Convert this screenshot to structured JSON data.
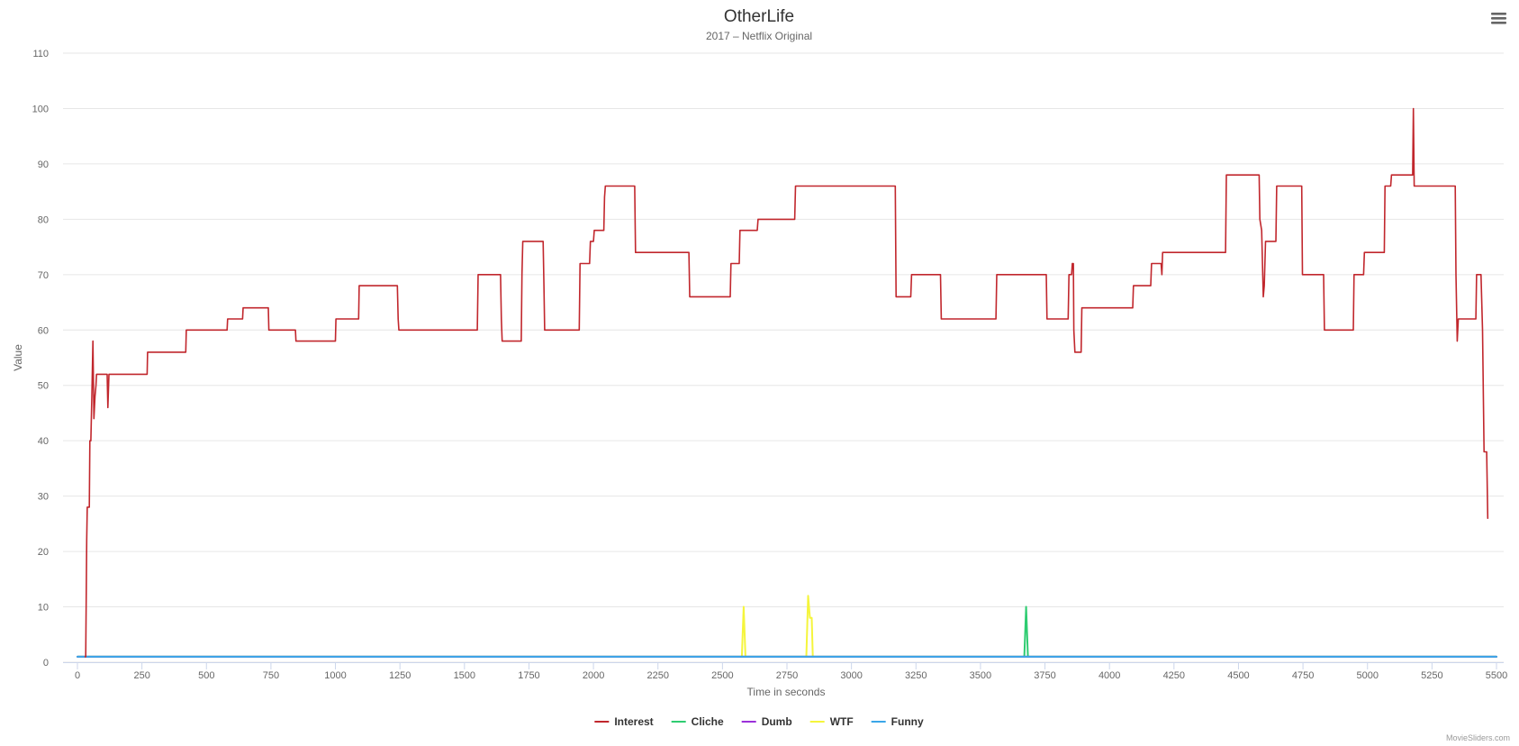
{
  "menu_icon": "hamburger-menu-icon",
  "credits": "MovieSliders.com",
  "chart_data": {
    "type": "line",
    "title": "OtherLife",
    "subtitle": "2017 – Netflix Original",
    "xlabel": "Time in seconds",
    "ylabel": "Value",
    "xlim": [
      0,
      5500
    ],
    "ylim": [
      0,
      110
    ],
    "x_ticks": [
      0,
      250,
      500,
      750,
      1000,
      1250,
      1500,
      1750,
      2000,
      2250,
      2500,
      2750,
      3000,
      3250,
      3500,
      3750,
      4000,
      4250,
      4500,
      4750,
      5000,
      5250,
      5500
    ],
    "y_ticks": [
      0,
      10,
      20,
      30,
      40,
      50,
      60,
      70,
      80,
      90,
      100,
      110
    ],
    "grid": "horizontal",
    "legend_position": "bottom-center",
    "series": [
      {
        "name": "Interest",
        "color": "#c1272d",
        "points": [
          [
            30,
            1
          ],
          [
            32,
            1
          ],
          [
            36,
            22
          ],
          [
            38,
            28
          ],
          [
            46,
            28
          ],
          [
            48,
            40
          ],
          [
            52,
            40
          ],
          [
            56,
            48
          ],
          [
            60,
            58
          ],
          [
            64,
            44
          ],
          [
            68,
            48
          ],
          [
            72,
            50
          ],
          [
            74,
            52
          ],
          [
            115,
            52
          ],
          [
            118,
            46
          ],
          [
            122,
            52
          ],
          [
            270,
            52
          ],
          [
            272,
            56
          ],
          [
            420,
            56
          ],
          [
            422,
            60
          ],
          [
            580,
            60
          ],
          [
            582,
            62
          ],
          [
            640,
            62
          ],
          [
            642,
            64
          ],
          [
            740,
            64
          ],
          [
            742,
            60
          ],
          [
            845,
            60
          ],
          [
            847,
            58
          ],
          [
            1000,
            58
          ],
          [
            1002,
            62
          ],
          [
            1090,
            62
          ],
          [
            1092,
            68
          ],
          [
            1240,
            68
          ],
          [
            1243,
            62
          ],
          [
            1246,
            60
          ],
          [
            1550,
            60
          ],
          [
            1553,
            70
          ],
          [
            1640,
            70
          ],
          [
            1643,
            62
          ],
          [
            1646,
            58
          ],
          [
            1720,
            58
          ],
          [
            1723,
            70
          ],
          [
            1726,
            76
          ],
          [
            1805,
            76
          ],
          [
            1808,
            68
          ],
          [
            1811,
            60
          ],
          [
            1945,
            60
          ],
          [
            1948,
            72
          ],
          [
            1985,
            72
          ],
          [
            1988,
            76
          ],
          [
            2000,
            76
          ],
          [
            2003,
            78
          ],
          [
            2040,
            78
          ],
          [
            2043,
            84
          ],
          [
            2046,
            86
          ],
          [
            2160,
            86
          ],
          [
            2163,
            74
          ],
          [
            2370,
            74
          ],
          [
            2373,
            66
          ],
          [
            2530,
            66
          ],
          [
            2533,
            72
          ],
          [
            2565,
            72
          ],
          [
            2568,
            78
          ],
          [
            2635,
            78
          ],
          [
            2638,
            80
          ],
          [
            2780,
            80
          ],
          [
            2783,
            86
          ],
          [
            3170,
            86
          ],
          [
            3173,
            66
          ],
          [
            3230,
            66
          ],
          [
            3233,
            70
          ],
          [
            3345,
            70
          ],
          [
            3348,
            62
          ],
          [
            3560,
            62
          ],
          [
            3563,
            70
          ],
          [
            3755,
            70
          ],
          [
            3758,
            62
          ],
          [
            3840,
            62
          ],
          [
            3843,
            70
          ],
          [
            3853,
            70
          ],
          [
            3856,
            72
          ],
          [
            3860,
            72
          ],
          [
            3862,
            60
          ],
          [
            3866,
            56
          ],
          [
            3890,
            56
          ],
          [
            3893,
            64
          ],
          [
            4090,
            64
          ],
          [
            4093,
            68
          ],
          [
            4160,
            68
          ],
          [
            4163,
            72
          ],
          [
            4200,
            72
          ],
          [
            4203,
            70
          ],
          [
            4206,
            74
          ],
          [
            4450,
            74
          ],
          [
            4453,
            88
          ],
          [
            4580,
            88
          ],
          [
            4583,
            80
          ],
          [
            4590,
            78
          ],
          [
            4596,
            66
          ],
          [
            4600,
            68
          ],
          [
            4605,
            76
          ],
          [
            4645,
            76
          ],
          [
            4648,
            86
          ],
          [
            4745,
            86
          ],
          [
            4748,
            70
          ],
          [
            4830,
            70
          ],
          [
            4833,
            60
          ],
          [
            4945,
            60
          ],
          [
            4948,
            70
          ],
          [
            4985,
            70
          ],
          [
            4988,
            74
          ],
          [
            5065,
            74
          ],
          [
            5068,
            86
          ],
          [
            5090,
            86
          ],
          [
            5093,
            88
          ],
          [
            5175,
            88
          ],
          [
            5178,
            100
          ],
          [
            5181,
            86
          ],
          [
            5340,
            86
          ],
          [
            5343,
            70
          ],
          [
            5348,
            58
          ],
          [
            5352,
            62
          ],
          [
            5420,
            62
          ],
          [
            5423,
            70
          ],
          [
            5440,
            70
          ],
          [
            5446,
            60
          ],
          [
            5452,
            38
          ],
          [
            5462,
            38
          ],
          [
            5466,
            26
          ]
        ]
      },
      {
        "name": "Cliche",
        "color": "#2ecc71",
        "points": [
          [
            0,
            1
          ],
          [
            3670,
            1
          ],
          [
            3677,
            10
          ],
          [
            3684,
            1
          ],
          [
            5500,
            1
          ]
        ]
      },
      {
        "name": "Dumb",
        "color": "#9b30d9",
        "points": [
          [
            0,
            1
          ],
          [
            5500,
            1
          ]
        ]
      },
      {
        "name": "WTF",
        "color": "#f5f53c",
        "points": [
          [
            0,
            1
          ],
          [
            2575,
            1
          ],
          [
            2582,
            10
          ],
          [
            2589,
            1
          ],
          [
            2825,
            1
          ],
          [
            2832,
            12
          ],
          [
            2839,
            8
          ],
          [
            2846,
            8
          ],
          [
            2850,
            1
          ],
          [
            5500,
            1
          ]
        ]
      },
      {
        "name": "Funny",
        "color": "#3aa6e8",
        "points": [
          [
            0,
            1
          ],
          [
            5500,
            1
          ]
        ]
      }
    ]
  }
}
